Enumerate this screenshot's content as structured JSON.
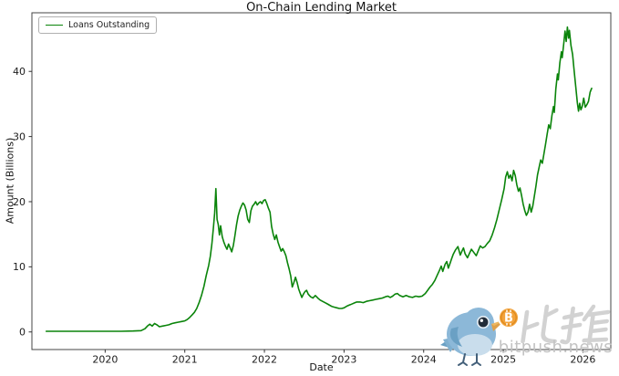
{
  "watermark": {
    "cn_text": "比推",
    "en_text": "bitpush.news"
  },
  "chart_data": {
    "type": "line",
    "title": "On-Chain Lending Market",
    "xlabel": "Date",
    "ylabel": "Amount (Billions)",
    "x_ticks": [
      2020,
      2021,
      2022,
      2023,
      2024,
      2025,
      2026
    ],
    "y_ticks": [
      0,
      10,
      20,
      30,
      40
    ],
    "xlim": [
      2019.08,
      2026.35
    ],
    "ylim": [
      -2.7,
      49.0
    ],
    "grid": false,
    "legend_position": "upper left",
    "series": [
      {
        "name": "Loans Outstanding",
        "color": "#0a840a",
        "points": [
          [
            2019.26,
            0.1
          ],
          [
            2019.4,
            0.1
          ],
          [
            2019.6,
            0.1
          ],
          [
            2019.8,
            0.1
          ],
          [
            2020.0,
            0.1
          ],
          [
            2020.2,
            0.1
          ],
          [
            2020.35,
            0.15
          ],
          [
            2020.45,
            0.2
          ],
          [
            2020.5,
            0.5
          ],
          [
            2020.53,
            0.9
          ],
          [
            2020.56,
            1.2
          ],
          [
            2020.59,
            0.9
          ],
          [
            2020.62,
            1.3
          ],
          [
            2020.65,
            1.1
          ],
          [
            2020.68,
            0.8
          ],
          [
            2020.72,
            0.9
          ],
          [
            2020.76,
            1.0
          ],
          [
            2020.8,
            1.1
          ],
          [
            2020.84,
            1.3
          ],
          [
            2020.88,
            1.4
          ],
          [
            2020.92,
            1.5
          ],
          [
            2020.96,
            1.6
          ],
          [
            2021.0,
            1.7
          ],
          [
            2021.03,
            1.9
          ],
          [
            2021.06,
            2.2
          ],
          [
            2021.09,
            2.6
          ],
          [
            2021.12,
            3.0
          ],
          [
            2021.15,
            3.6
          ],
          [
            2021.18,
            4.5
          ],
          [
            2021.21,
            5.6
          ],
          [
            2021.24,
            7.0
          ],
          [
            2021.27,
            8.7
          ],
          [
            2021.3,
            10.2
          ],
          [
            2021.32,
            11.6
          ],
          [
            2021.34,
            13.5
          ],
          [
            2021.36,
            16.0
          ],
          [
            2021.375,
            18.3
          ],
          [
            2021.39,
            22.0
          ],
          [
            2021.405,
            17.3
          ],
          [
            2021.42,
            16.5
          ],
          [
            2021.435,
            14.9
          ],
          [
            2021.45,
            16.3
          ],
          [
            2021.47,
            14.6
          ],
          [
            2021.49,
            13.8
          ],
          [
            2021.51,
            13.2
          ],
          [
            2021.53,
            12.7
          ],
          [
            2021.55,
            13.5
          ],
          [
            2021.57,
            12.9
          ],
          [
            2021.59,
            12.3
          ],
          [
            2021.61,
            13.3
          ],
          [
            2021.63,
            14.8
          ],
          [
            2021.65,
            16.5
          ],
          [
            2021.67,
            17.8
          ],
          [
            2021.69,
            18.7
          ],
          [
            2021.71,
            19.3
          ],
          [
            2021.73,
            19.8
          ],
          [
            2021.75,
            19.5
          ],
          [
            2021.77,
            18.7
          ],
          [
            2021.79,
            17.3
          ],
          [
            2021.81,
            16.8
          ],
          [
            2021.83,
            18.6
          ],
          [
            2021.85,
            19.3
          ],
          [
            2021.87,
            19.6
          ],
          [
            2021.89,
            20.0
          ],
          [
            2021.91,
            19.5
          ],
          [
            2021.93,
            19.8
          ],
          [
            2021.95,
            20.0
          ],
          [
            2021.97,
            19.7
          ],
          [
            2021.99,
            20.2
          ],
          [
            2022.01,
            20.3
          ],
          [
            2022.03,
            19.7
          ],
          [
            2022.05,
            19.0
          ],
          [
            2022.07,
            18.4
          ],
          [
            2022.09,
            16.2
          ],
          [
            2022.11,
            15.0
          ],
          [
            2022.13,
            14.2
          ],
          [
            2022.15,
            14.9
          ],
          [
            2022.17,
            13.8
          ],
          [
            2022.19,
            13.1
          ],
          [
            2022.21,
            12.4
          ],
          [
            2022.23,
            12.8
          ],
          [
            2022.25,
            12.3
          ],
          [
            2022.27,
            11.7
          ],
          [
            2022.29,
            10.6
          ],
          [
            2022.31,
            9.7
          ],
          [
            2022.33,
            8.6
          ],
          [
            2022.35,
            6.9
          ],
          [
            2022.37,
            7.6
          ],
          [
            2022.39,
            8.4
          ],
          [
            2022.41,
            7.6
          ],
          [
            2022.43,
            6.6
          ],
          [
            2022.45,
            5.9
          ],
          [
            2022.47,
            5.3
          ],
          [
            2022.49,
            5.8
          ],
          [
            2022.51,
            6.2
          ],
          [
            2022.53,
            6.4
          ],
          [
            2022.55,
            5.8
          ],
          [
            2022.58,
            5.4
          ],
          [
            2022.61,
            5.2
          ],
          [
            2022.64,
            5.6
          ],
          [
            2022.67,
            5.2
          ],
          [
            2022.7,
            4.9
          ],
          [
            2022.73,
            4.7
          ],
          [
            2022.76,
            4.5
          ],
          [
            2022.79,
            4.3
          ],
          [
            2022.82,
            4.1
          ],
          [
            2022.85,
            3.9
          ],
          [
            2022.88,
            3.8
          ],
          [
            2022.91,
            3.7
          ],
          [
            2022.94,
            3.6
          ],
          [
            2022.97,
            3.6
          ],
          [
            2023.0,
            3.7
          ],
          [
            2023.04,
            4.0
          ],
          [
            2023.08,
            4.2
          ],
          [
            2023.12,
            4.4
          ],
          [
            2023.16,
            4.6
          ],
          [
            2023.2,
            4.6
          ],
          [
            2023.24,
            4.5
          ],
          [
            2023.28,
            4.7
          ],
          [
            2023.32,
            4.8
          ],
          [
            2023.36,
            4.9
          ],
          [
            2023.4,
            5.0
          ],
          [
            2023.44,
            5.1
          ],
          [
            2023.48,
            5.2
          ],
          [
            2023.52,
            5.4
          ],
          [
            2023.55,
            5.5
          ],
          [
            2023.58,
            5.3
          ],
          [
            2023.61,
            5.5
          ],
          [
            2023.64,
            5.8
          ],
          [
            2023.67,
            5.9
          ],
          [
            2023.7,
            5.6
          ],
          [
            2023.74,
            5.4
          ],
          [
            2023.78,
            5.6
          ],
          [
            2023.82,
            5.4
          ],
          [
            2023.86,
            5.3
          ],
          [
            2023.9,
            5.5
          ],
          [
            2023.94,
            5.4
          ],
          [
            2023.98,
            5.5
          ],
          [
            2024.02,
            5.9
          ],
          [
            2024.05,
            6.4
          ],
          [
            2024.08,
            6.9
          ],
          [
            2024.11,
            7.3
          ],
          [
            2024.14,
            7.9
          ],
          [
            2024.17,
            8.7
          ],
          [
            2024.2,
            9.5
          ],
          [
            2024.22,
            10.1
          ],
          [
            2024.24,
            9.3
          ],
          [
            2024.27,
            10.4
          ],
          [
            2024.29,
            10.8
          ],
          [
            2024.31,
            9.8
          ],
          [
            2024.33,
            10.5
          ],
          [
            2024.35,
            11.2
          ],
          [
            2024.37,
            11.9
          ],
          [
            2024.4,
            12.6
          ],
          [
            2024.43,
            13.1
          ],
          [
            2024.46,
            11.8
          ],
          [
            2024.48,
            12.4
          ],
          [
            2024.5,
            12.9
          ],
          [
            2024.52,
            12.0
          ],
          [
            2024.55,
            11.4
          ],
          [
            2024.58,
            12.2
          ],
          [
            2024.6,
            12.7
          ],
          [
            2024.63,
            12.2
          ],
          [
            2024.66,
            11.7
          ],
          [
            2024.69,
            12.6
          ],
          [
            2024.71,
            13.2
          ],
          [
            2024.74,
            12.9
          ],
          [
            2024.77,
            13.1
          ],
          [
            2024.8,
            13.6
          ],
          [
            2024.83,
            14.0
          ],
          [
            2024.86,
            14.9
          ],
          [
            2024.89,
            16.0
          ],
          [
            2024.92,
            17.3
          ],
          [
            2024.95,
            18.8
          ],
          [
            2024.98,
            20.3
          ],
          [
            2025.01,
            22.0
          ],
          [
            2025.03,
            23.8
          ],
          [
            2025.05,
            24.6
          ],
          [
            2025.07,
            23.6
          ],
          [
            2025.09,
            24.1
          ],
          [
            2025.11,
            23.2
          ],
          [
            2025.13,
            24.8
          ],
          [
            2025.15,
            24.0
          ],
          [
            2025.17,
            22.6
          ],
          [
            2025.19,
            21.6
          ],
          [
            2025.21,
            22.1
          ],
          [
            2025.23,
            20.9
          ],
          [
            2025.25,
            19.6
          ],
          [
            2025.27,
            18.6
          ],
          [
            2025.29,
            17.9
          ],
          [
            2025.31,
            18.4
          ],
          [
            2025.33,
            19.6
          ],
          [
            2025.35,
            18.4
          ],
          [
            2025.37,
            19.3
          ],
          [
            2025.39,
            20.8
          ],
          [
            2025.41,
            22.4
          ],
          [
            2025.43,
            24.1
          ],
          [
            2025.45,
            25.3
          ],
          [
            2025.47,
            26.4
          ],
          [
            2025.49,
            25.9
          ],
          [
            2025.51,
            27.3
          ],
          [
            2025.53,
            28.8
          ],
          [
            2025.55,
            30.3
          ],
          [
            2025.57,
            31.8
          ],
          [
            2025.59,
            31.2
          ],
          [
            2025.61,
            33.2
          ],
          [
            2025.63,
            34.6
          ],
          [
            2025.64,
            33.7
          ],
          [
            2025.66,
            37.3
          ],
          [
            2025.68,
            39.6
          ],
          [
            2025.69,
            38.7
          ],
          [
            2025.71,
            41.3
          ],
          [
            2025.73,
            43.0
          ],
          [
            2025.74,
            42.1
          ],
          [
            2025.76,
            44.4
          ],
          [
            2025.775,
            46.2
          ],
          [
            2025.79,
            44.6
          ],
          [
            2025.805,
            46.8
          ],
          [
            2025.82,
            45.1
          ],
          [
            2025.83,
            46.3
          ],
          [
            2025.85,
            44.0
          ],
          [
            2025.87,
            42.6
          ],
          [
            2025.89,
            40.1
          ],
          [
            2025.91,
            37.6
          ],
          [
            2025.93,
            35.2
          ],
          [
            2025.945,
            33.9
          ],
          [
            2025.96,
            35.1
          ],
          [
            2025.975,
            34.1
          ],
          [
            2025.99,
            34.6
          ],
          [
            2026.01,
            35.9
          ],
          [
            2026.03,
            34.5
          ],
          [
            2026.05,
            34.9
          ],
          [
            2026.07,
            35.4
          ],
          [
            2026.09,
            36.8
          ],
          [
            2026.11,
            37.4
          ]
        ]
      }
    ]
  }
}
